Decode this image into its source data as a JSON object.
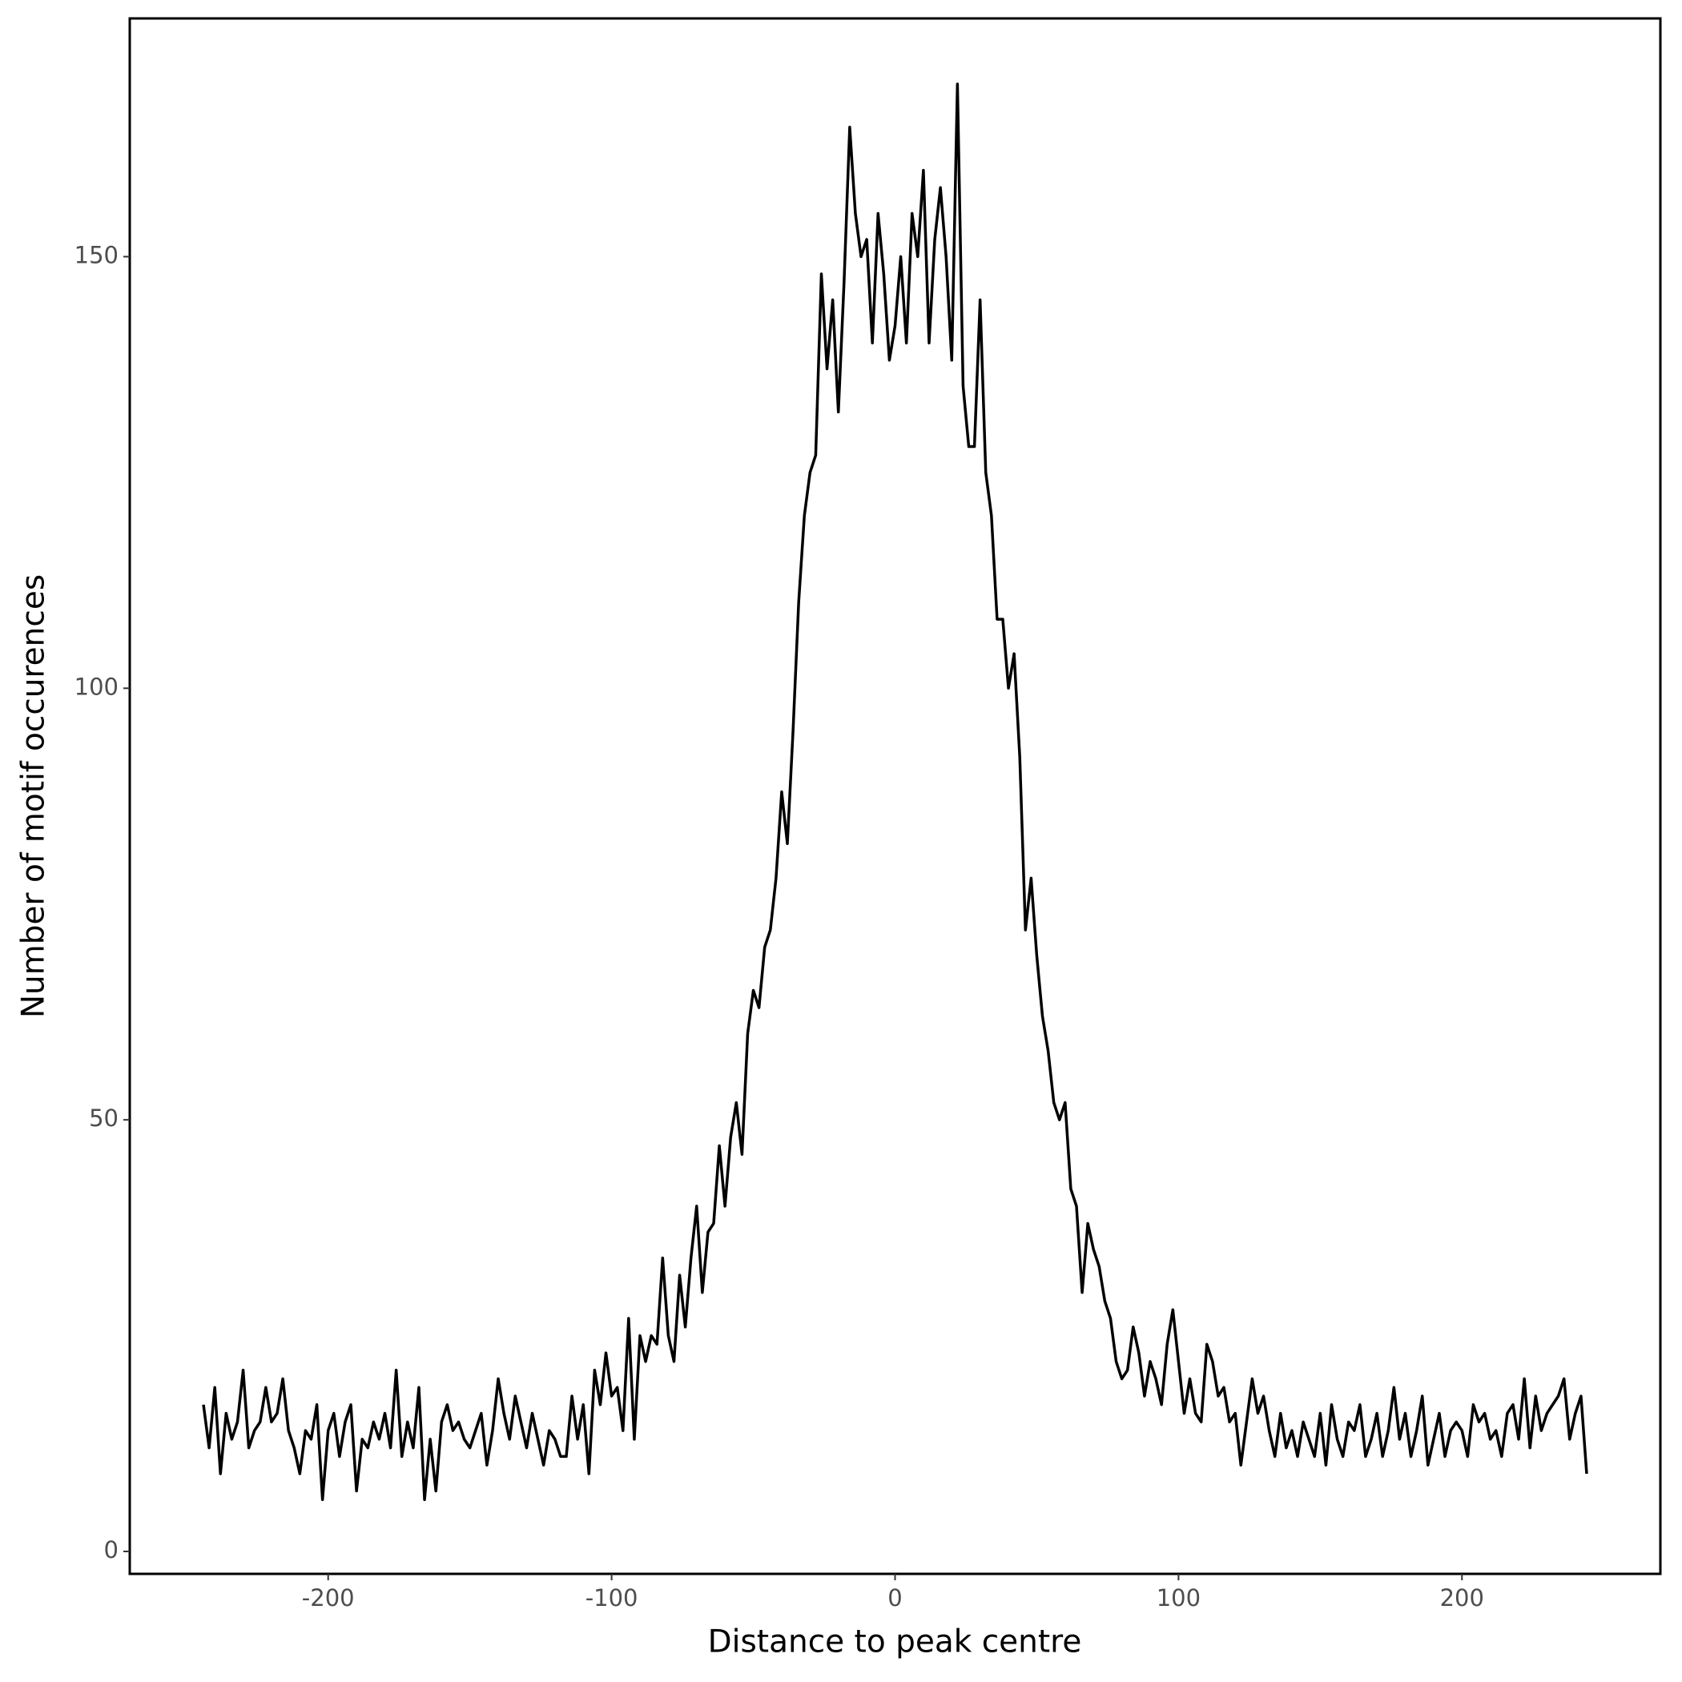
{
  "chart_data": {
    "type": "line",
    "xlabel": "Distance to peak centre",
    "ylabel": "Number of motif occurences",
    "color": "#000000",
    "x": [
      -244,
      -242,
      -240,
      -238,
      -236,
      -234,
      -232,
      -230,
      -228,
      -226,
      -224,
      -222,
      -220,
      -218,
      -216,
      -214,
      -212,
      -210,
      -208,
      -206,
      -204,
      -202,
      -200,
      -198,
      -196,
      -194,
      -192,
      -190,
      -188,
      -186,
      -184,
      -182,
      -180,
      -178,
      -176,
      -174,
      -172,
      -170,
      -168,
      -166,
      -164,
      -162,
      -160,
      -158,
      -156,
      -154,
      -152,
      -150,
      -148,
      -146,
      -144,
      -142,
      -140,
      -138,
      -136,
      -134,
      -132,
      -130,
      -128,
      -126,
      -124,
      -122,
      -120,
      -118,
      -116,
      -114,
      -112,
      -110,
      -108,
      -106,
      -104,
      -102,
      -100,
      -98,
      -96,
      -94,
      -92,
      -90,
      -88,
      -86,
      -84,
      -82,
      -80,
      -78,
      -76,
      -74,
      -72,
      -70,
      -68,
      -66,
      -64,
      -62,
      -60,
      -58,
      -56,
      -54,
      -52,
      -50,
      -48,
      -46,
      -44,
      -42,
      -40,
      -38,
      -36,
      -34,
      -32,
      -30,
      -28,
      -26,
      -24,
      -22,
      -20,
      -18,
      -16,
      -14,
      -12,
      -10,
      -8,
      -6,
      -4,
      -2,
      0,
      2,
      4,
      6,
      8,
      10,
      12,
      14,
      16,
      18,
      20,
      22,
      24,
      26,
      28,
      30,
      32,
      34,
      36,
      38,
      40,
      42,
      44,
      46,
      48,
      50,
      52,
      54,
      56,
      58,
      60,
      62,
      64,
      66,
      68,
      70,
      72,
      74,
      76,
      78,
      80,
      82,
      84,
      86,
      88,
      90,
      92,
      94,
      96,
      98,
      100,
      102,
      104,
      106,
      108,
      110,
      112,
      114,
      116,
      118,
      120,
      122,
      124,
      126,
      128,
      130,
      132,
      134,
      136,
      138,
      140,
      142,
      144,
      146,
      148,
      150,
      152,
      154,
      156,
      158,
      160,
      162,
      164,
      166,
      168,
      170,
      172,
      174,
      176,
      178,
      180,
      182,
      184,
      186,
      188,
      190,
      192,
      194,
      196,
      198,
      200,
      202,
      204,
      206,
      208,
      210,
      212,
      214,
      216,
      218,
      220,
      222,
      224,
      226,
      228,
      230,
      232,
      234,
      236,
      238,
      240,
      242,
      244
    ],
    "values": [
      17,
      12,
      19,
      9,
      16,
      13,
      15,
      21,
      12,
      14,
      15,
      19,
      15,
      16,
      20,
      14,
      12,
      9,
      14,
      13,
      17,
      6,
      14,
      16,
      11,
      15,
      17,
      7,
      13,
      12,
      15,
      13,
      16,
      12,
      21,
      11,
      15,
      12,
      19,
      6,
      13,
      7,
      15,
      17,
      14,
      15,
      13,
      12,
      14,
      16,
      10,
      14,
      20,
      16,
      13,
      18,
      15,
      12,
      16,
      13,
      10,
      14,
      13,
      11,
      11,
      18,
      13,
      17,
      9,
      21,
      17,
      23,
      18,
      19,
      14,
      27,
      13,
      25,
      22,
      25,
      24,
      34,
      25,
      22,
      32,
      26,
      34,
      40,
      30,
      37,
      38,
      47,
      40,
      48,
      52,
      46,
      60,
      65,
      63,
      70,
      72,
      78,
      88,
      82,
      95,
      110,
      120,
      125,
      127,
      148,
      137,
      145,
      132,
      147,
      165,
      155,
      150,
      152,
      140,
      155,
      148,
      138,
      142,
      150,
      140,
      155,
      150,
      160,
      140,
      152,
      158,
      150,
      138,
      170,
      135,
      128,
      128,
      145,
      125,
      120,
      108,
      108,
      100,
      104,
      92,
      72,
      78,
      69,
      62,
      58,
      52,
      50,
      52,
      42,
      40,
      30,
      38,
      35,
      33,
      29,
      27,
      22,
      20,
      21,
      26,
      23,
      18,
      22,
      20,
      17,
      24,
      28,
      22,
      16,
      20,
      16,
      15,
      24,
      22,
      18,
      19,
      15,
      16,
      10,
      15,
      20,
      16,
      18,
      14,
      11,
      16,
      12,
      14,
      11,
      15,
      13,
      11,
      16,
      10,
      17,
      13,
      11,
      15,
      14,
      17,
      11,
      13,
      16,
      11,
      14,
      19,
      13,
      16,
      11,
      14,
      18,
      10,
      13,
      16,
      11,
      14,
      15,
      14,
      11,
      17,
      15,
      16,
      13,
      14,
      11,
      16,
      17,
      13,
      20,
      12,
      18,
      14,
      16,
      17,
      18,
      20,
      13,
      16,
      18,
      9
    ],
    "xlim": [
      -270,
      270
    ],
    "ylim": [
      -2.6,
      177.6
    ],
    "xticks": [
      -200,
      -100,
      0,
      100,
      200
    ],
    "yticks": [
      0,
      50,
      100,
      150
    ],
    "grid": false
  }
}
